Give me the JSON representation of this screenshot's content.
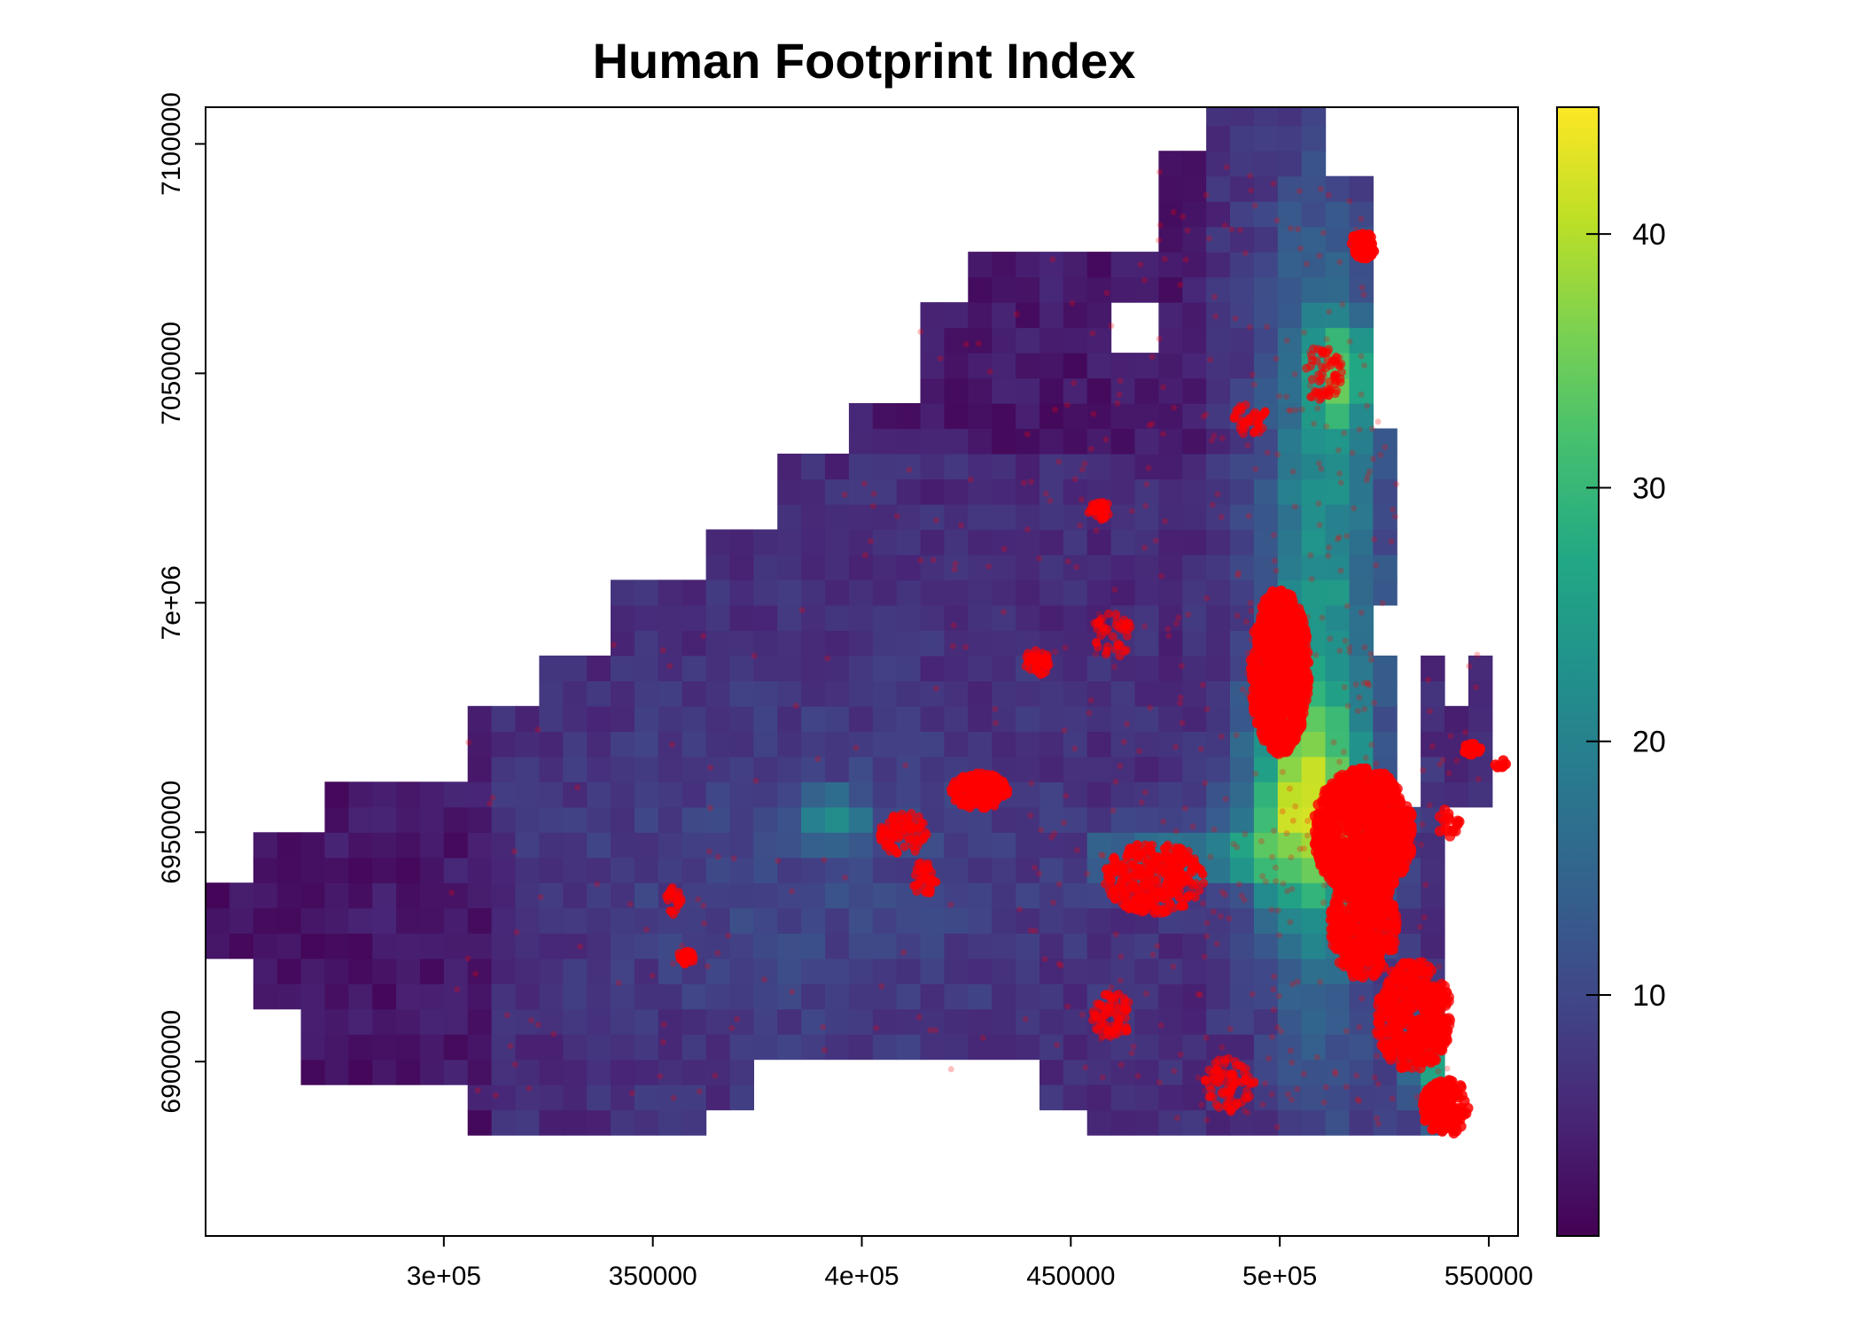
{
  "title": "Human Footprint Index",
  "x_axis": {
    "range": [
      243000,
      557000
    ],
    "ticks": [
      {
        "value": 300000,
        "label": "3e+05"
      },
      {
        "value": 350000,
        "label": "350000"
      },
      {
        "value": 400000,
        "label": "4e+05"
      },
      {
        "value": 450000,
        "label": "450000"
      },
      {
        "value": 500000,
        "label": "5e+05"
      },
      {
        "value": 550000,
        "label": "550000"
      }
    ]
  },
  "y_axis": {
    "range": [
      6862000,
      7108000
    ],
    "ticks": [
      {
        "value": 6900000,
        "label": "6900000"
      },
      {
        "value": 6950000,
        "label": "6950000"
      },
      {
        "value": 7000000,
        "label": "7e+06"
      },
      {
        "value": 7050000,
        "label": "7050000"
      },
      {
        "value": 7100000,
        "label": "7100000"
      }
    ]
  },
  "colorbar": {
    "palette": "viridis",
    "range": [
      0.5,
      45
    ],
    "ticks": [
      {
        "value": 10,
        "label": "10"
      },
      {
        "value": 20,
        "label": "20"
      },
      {
        "value": 30,
        "label": "30"
      },
      {
        "value": 40,
        "label": "40"
      }
    ]
  },
  "points_color": "#ff0000",
  "chart_data": {
    "type": "heatmap",
    "title": "Human Footprint Index",
    "xlabel": "",
    "ylabel": "",
    "xlim": [
      243000,
      557000
    ],
    "ylim": [
      6862000,
      7108000
    ],
    "grid": false,
    "legend": "right colorbar",
    "raster_cell_size": [
      5700,
      5500
    ],
    "value_range": [
      0.5,
      45
    ],
    "overlay": "red semi-transparent occurrence points, densest near x 490000-540000, y 6890000-7000000"
  }
}
